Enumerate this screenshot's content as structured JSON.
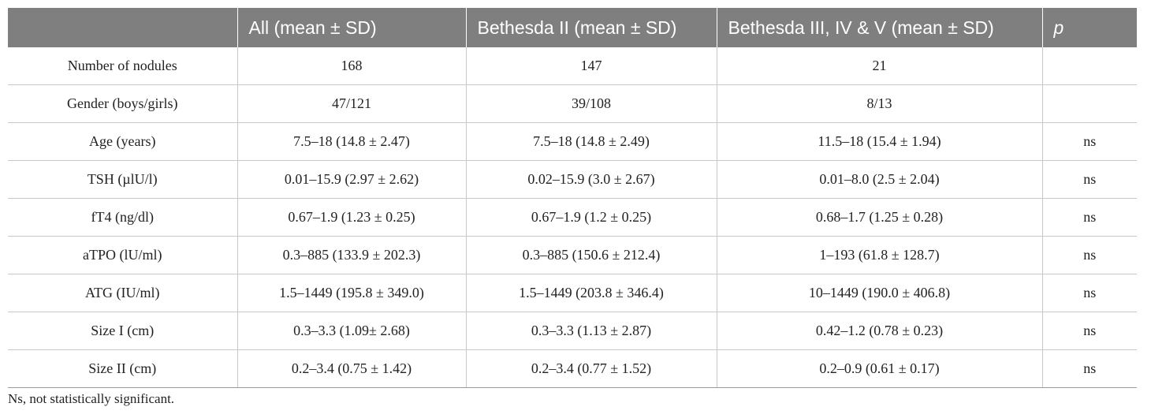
{
  "table": {
    "headers": [
      "",
      "All (mean ± SD)",
      "Bethesda II (mean ± SD)",
      "Bethesda III, IV & V (mean ± SD)",
      "p"
    ],
    "rows": [
      [
        "Number of nodules",
        "168",
        "147",
        "21",
        ""
      ],
      [
        "Gender (boys/girls)",
        "47/121",
        "39/108",
        "8/13",
        ""
      ],
      [
        "Age (years)",
        "7.5–18 (14.8 ± 2.47)",
        "7.5–18 (14.8 ± 2.49)",
        "11.5–18 (15.4 ± 1.94)",
        "ns"
      ],
      [
        "TSH (µlU/l)",
        "0.01–15.9 (2.97 ± 2.62)",
        "0.02–15.9 (3.0 ± 2.67)",
        "0.01–8.0 (2.5 ± 2.04)",
        "ns"
      ],
      [
        "fT4 (ng/dl)",
        "0.67–1.9 (1.23 ± 0.25)",
        "0.67–1.9 (1.2 ± 0.25)",
        "0.68–1.7 (1.25 ± 0.28)",
        "ns"
      ],
      [
        "aTPO (lU/ml)",
        "0.3–885 (133.9 ± 202.3)",
        "0.3–885 (150.6 ± 212.4)",
        "1–193 (61.8 ± 128.7)",
        "ns"
      ],
      [
        "ATG (IU/ml)",
        "1.5–1449 (195.8 ± 349.0)",
        "1.5–1449 (203.8 ± 346.4)",
        "10–1449 (190.0 ± 406.8)",
        "ns"
      ],
      [
        "Size I (cm)",
        "0.3–3.3 (1.09± 2.68)",
        "0.3–3.3 (1.13 ± 2.87)",
        "0.42–1.2 (0.78 ± 0.23)",
        "ns"
      ],
      [
        "Size II (cm)",
        "0.2–3.4 (0.75 ± 1.42)",
        "0.2–3.4 (0.77 ± 1.52)",
        "0.2–0.9 (0.61 ± 0.17)",
        "ns"
      ]
    ]
  },
  "footnote": "Ns, not statistically significant.",
  "colors": {
    "header_background": "#7f7f7f",
    "header_text": "#ffffff",
    "rule": "#c8c8c8"
  }
}
